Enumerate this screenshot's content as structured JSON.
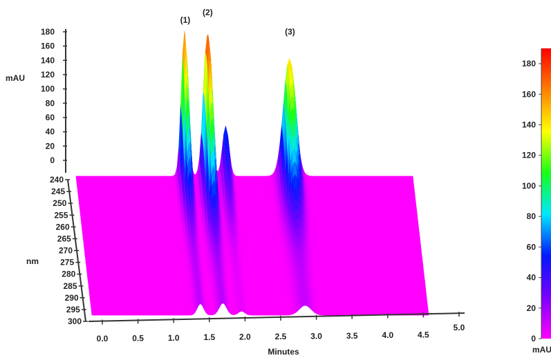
{
  "chart_data": {
    "type": "surface-3d",
    "x_axis": {
      "label": "Minutes",
      "ticks": [
        "0.0",
        "0.5",
        "1.0",
        "1.5",
        "2.0",
        "2.5",
        "3.0",
        "3.5",
        "4.0",
        "4.5",
        "5.0"
      ],
      "range": [
        0.0,
        5.0
      ]
    },
    "wavelength_axis": {
      "label": "nm",
      "ticks": [
        "240",
        "245",
        "250",
        "255",
        "260",
        "265",
        "270",
        "275",
        "280",
        "285",
        "290",
        "295",
        "300"
      ],
      "range": [
        240,
        300
      ]
    },
    "z_axis": {
      "label": "mAU",
      "ticks": [
        "0",
        "20",
        "40",
        "60",
        "80",
        "100",
        "120",
        "140",
        "160",
        "180"
      ],
      "range": [
        0,
        180
      ]
    },
    "colorbar": {
      "label": "mAU",
      "ticks": [
        "0",
        "20",
        "40",
        "60",
        "80",
        "100",
        "120",
        "140",
        "160",
        "180"
      ],
      "range": [
        0,
        190
      ],
      "colors": [
        "#ff00ff",
        "#7a00ff",
        "#0018ff",
        "#00e8ff",
        "#18ff18",
        "#ffff00",
        "#ff8000",
        "#ff0000"
      ]
    },
    "peaks": [
      {
        "label": "(1)",
        "retention_time": 1.45,
        "max_absorbance": 172,
        "spread": 0.06
      },
      {
        "label": "(2)",
        "retention_time": 1.75,
        "max_absorbance": 180,
        "spread": 0.07
      },
      {
        "label": "(3)",
        "retention_time": 2.85,
        "max_absorbance": 145,
        "spread": 0.11
      }
    ],
    "shoulder": {
      "retention_time": 2.0,
      "max_absorbance": 60,
      "spread": 0.06
    },
    "baseline_range": [
      0.0,
      4.5
    ]
  }
}
